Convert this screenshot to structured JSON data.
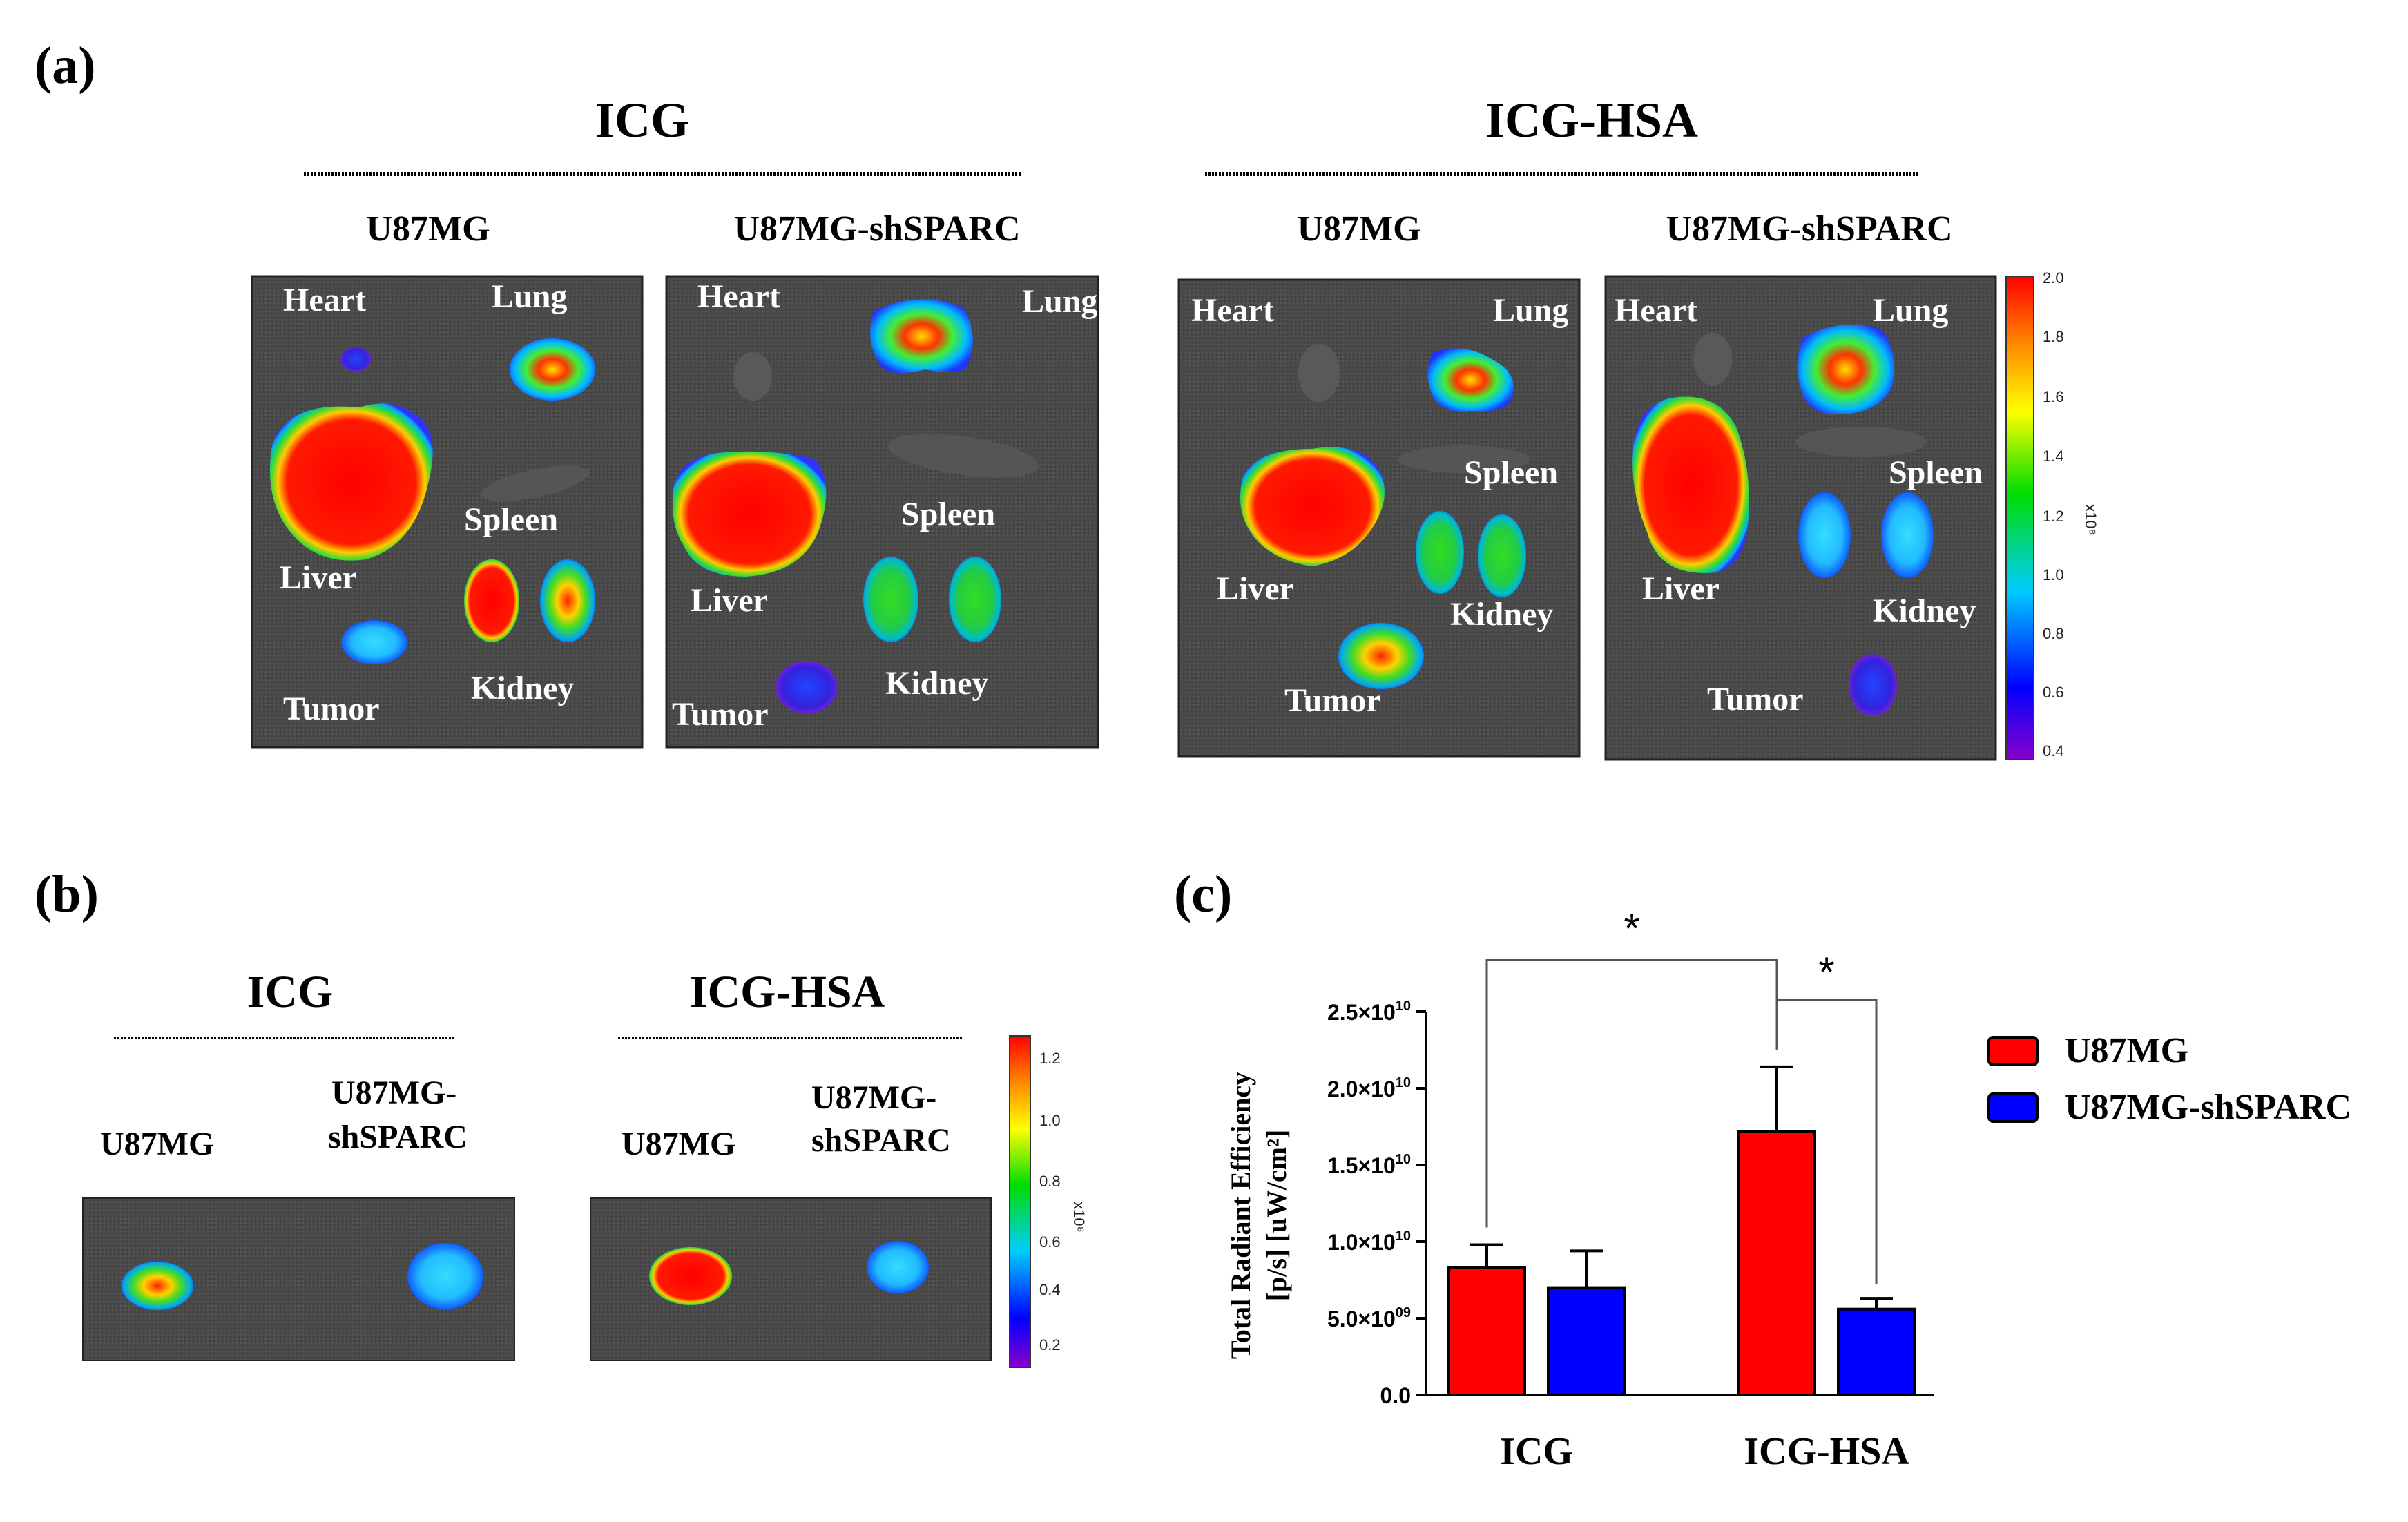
{
  "panel_labels": {
    "a": "(a)",
    "b": "(b)",
    "c": "(c)"
  },
  "panel_a": {
    "groups": [
      {
        "title": "ICG",
        "columns": [
          {
            "label": "U87MG",
            "organs": {
              "heart": "Heart",
              "lung": "Lung",
              "liver": "Liver",
              "spleen": "Spleen",
              "kidney": "Kidney",
              "tumor": "Tumor"
            }
          },
          {
            "label": "U87MG-shSPARC",
            "organs": {
              "heart": "Heart",
              "lung": "Lung",
              "liver": "Liver",
              "spleen": "Spleen",
              "kidney": "Kidney",
              "tumor": "Tumor"
            }
          }
        ]
      },
      {
        "title": "ICG-HSA",
        "columns": [
          {
            "label": "U87MG",
            "organs": {
              "heart": "Heart",
              "lung": "Lung",
              "liver": "Liver",
              "spleen": "Spleen",
              "kidney": "Kidney",
              "tumor": "Tumor"
            }
          },
          {
            "label": "U87MG-shSPARC",
            "organs": {
              "heart": "Heart",
              "lung": "Lung",
              "liver": "Liver",
              "spleen": "Spleen",
              "kidney": "Kidney",
              "tumor": "Tumor"
            }
          }
        ]
      }
    ],
    "colorbar_ticks": [
      "2.0",
      "1.8",
      "1.6",
      "1.4",
      "1.2",
      "1.0",
      "0.8",
      "0.6",
      "0.4"
    ],
    "colorbar_unit": "x10⁸"
  },
  "panel_b": {
    "groups": [
      {
        "title": "ICG",
        "labels": [
          "U87MG",
          "U87MG-",
          "shSPARC"
        ]
      },
      {
        "title": "ICG-HSA",
        "labels": [
          "U87MG",
          "U87MG-",
          "shSPARC"
        ]
      }
    ],
    "colorbar_ticks": [
      "1.2",
      "1.0",
      "0.8",
      "0.6",
      "0.4",
      "0.2"
    ],
    "colorbar_unit": "x10⁸"
  },
  "colors": {
    "u87mg": "#ff0000",
    "shsparc": "#0000ff"
  },
  "chart_data": {
    "type": "bar",
    "categories": [
      "ICG",
      "ICG-HSA"
    ],
    "series": [
      {
        "name": "U87MG",
        "values": [
          8300000000.0,
          17200000000.0
        ],
        "errors": [
          1500000000.0,
          4200000000.0
        ]
      },
      {
        "name": "U87MG-shSPARC",
        "values": [
          7000000000.0,
          5600000000.0
        ],
        "errors": [
          2400000000.0,
          700000000.0
        ]
      }
    ],
    "ylabel_line1": "Total Radiant Efficiency",
    "ylabel_line2": "[p/s]  [uW/cm²]",
    "ylim": [
      0,
      25000000000.0
    ],
    "yticks": [
      {
        "value": 0,
        "mantissa": "0.0",
        "exp": ""
      },
      {
        "value": 5000000000.0,
        "mantissa": "5.0×10",
        "exp": "09"
      },
      {
        "value": 10000000000.0,
        "mantissa": "1.0×10",
        "exp": "10"
      },
      {
        "value": 15000000000.0,
        "mantissa": "1.5×10",
        "exp": "10"
      },
      {
        "value": 20000000000.0,
        "mantissa": "2.0×10",
        "exp": "10"
      },
      {
        "value": 25000000000.0,
        "mantissa": "2.5×10",
        "exp": "10"
      }
    ],
    "significance": [
      "*",
      "*"
    ],
    "legend": [
      "U87MG",
      "U87MG-shSPARC"
    ],
    "legend_position": "right"
  }
}
